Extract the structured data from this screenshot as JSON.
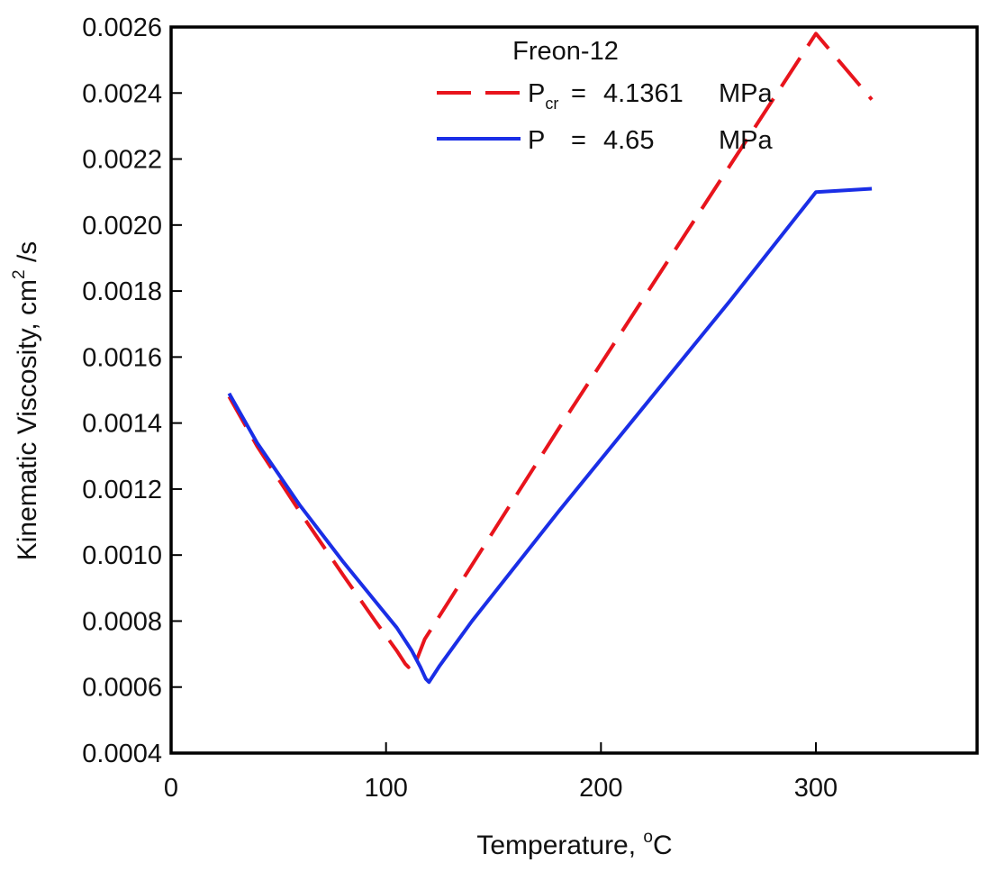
{
  "chart_data": {
    "type": "line",
    "title": "Freon-12",
    "xlabel": "Temperature, ",
    "xlabel_sup": "o",
    "xlabel_suffix": "C",
    "ylabel": "Kinematic Viscosity,  cm",
    "ylabel_sup": "2",
    "ylabel_suffix": " /s",
    "xlim": [
      0,
      375
    ],
    "ylim": [
      0.0004,
      0.0026
    ],
    "x_ticks": [
      0,
      100,
      200,
      300
    ],
    "x_tick_labels": [
      "0",
      "100",
      "200",
      "300"
    ],
    "y_ticks": [
      0.0004,
      0.0006,
      0.0008,
      0.001,
      0.0012,
      0.0014,
      0.0016,
      0.0018,
      0.002,
      0.0022,
      0.0024,
      0.0026
    ],
    "y_tick_labels": [
      "0.0004",
      "0.0006",
      "0.0008",
      "0.0010",
      "0.0012",
      "0.0014",
      "0.0016",
      "0.0018",
      "0.0020",
      "0.0022",
      "0.0024",
      "0.0026"
    ],
    "grid": false,
    "legend_position": "top-center",
    "series": [
      {
        "legend_symbol": "P",
        "legend_subscript": "cr",
        "legend_eq": "=",
        "legend_value": "4.1361",
        "legend_unit": "MPa",
        "color": "#e8141c",
        "dash": "dashed",
        "x": [
          27,
          40,
          60,
          80,
          95,
          105,
          109,
          110.5,
          111.2,
          112.5,
          113.5,
          118,
          140,
          180,
          220,
          260,
          300,
          326
        ],
        "y": [
          0.00148,
          0.00133,
          0.00113,
          0.00094,
          0.0008,
          0.00071,
          0.00067,
          0.00066,
          0.000675,
          0.000665,
          0.00067,
          0.000745,
          0.00097,
          0.00138,
          0.00178,
          0.00218,
          0.00258,
          0.00238
        ]
      },
      {
        "legend_symbol": "P",
        "legend_subscript": "",
        "legend_eq": "=",
        "legend_value": "4.65",
        "legend_unit": "MPa",
        "color": "#1a2ee6",
        "dash": "solid",
        "x": [
          27,
          40,
          60,
          80,
          95,
          105,
          112,
          116,
          118.5,
          120,
          125,
          140,
          180,
          220,
          260,
          300,
          326
        ],
        "y": [
          0.00149,
          0.00134,
          0.00115,
          0.00098,
          0.00086,
          0.00078,
          0.00071,
          0.00066,
          0.000625,
          0.000615,
          0.000665,
          0.0008,
          0.00113,
          0.00145,
          0.00177,
          0.0021,
          0.00211
        ]
      }
    ]
  }
}
